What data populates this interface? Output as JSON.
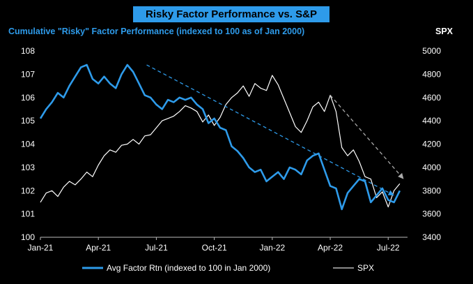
{
  "chart_data": {
    "type": "line",
    "title": "Risky Factor Performance vs. S&P",
    "subtitle": "Cumulative \"Risky\" Factor Performance (indexed to 100 as of Jan 2000)",
    "right_axis_title": "SPX",
    "x_tick_labels": [
      "Jan-21",
      "Apr-21",
      "Jul-21",
      "Oct-21",
      "Jan-22",
      "Apr-22",
      "Jul-22"
    ],
    "x_tick_months": [
      0,
      3,
      6,
      9,
      12,
      15,
      18
    ],
    "x_range_months": [
      0,
      19
    ],
    "left_axis": {
      "ylim": [
        100,
        108
      ],
      "ticks": [
        100,
        101,
        102,
        103,
        104,
        105,
        106,
        107,
        108
      ]
    },
    "right_axis": {
      "ylim": [
        3400,
        5000
      ],
      "ticks": [
        3400,
        3600,
        3800,
        4000,
        4200,
        4400,
        4600,
        4800,
        5000
      ]
    },
    "legend_position": "bottom",
    "series": [
      {
        "name": "Avg Factor Rtn (indexed to 100 in Jan 2000)",
        "axis": "left",
        "color": "#2e9bea",
        "x": [
          0,
          0.3,
          0.6,
          0.9,
          1.2,
          1.5,
          1.8,
          2.1,
          2.4,
          2.7,
          3.0,
          3.3,
          3.6,
          3.9,
          4.2,
          4.5,
          4.8,
          5.1,
          5.4,
          5.7,
          6.0,
          6.3,
          6.6,
          6.9,
          7.2,
          7.5,
          7.8,
          8.1,
          8.4,
          8.7,
          9.0,
          9.3,
          9.6,
          9.9,
          10.2,
          10.5,
          10.8,
          11.1,
          11.4,
          11.7,
          12.0,
          12.3,
          12.6,
          12.9,
          13.2,
          13.5,
          13.8,
          14.1,
          14.4,
          14.7,
          15.0,
          15.3,
          15.6,
          15.9,
          16.2,
          16.5,
          16.8,
          17.1,
          17.4,
          17.7,
          18.0,
          18.3,
          18.6
        ],
        "values": [
          105.1,
          105.5,
          105.8,
          106.2,
          106.0,
          106.5,
          106.9,
          107.3,
          107.4,
          106.8,
          106.6,
          106.9,
          106.6,
          106.4,
          107.0,
          107.4,
          107.1,
          106.6,
          106.1,
          106.0,
          105.7,
          105.5,
          105.9,
          105.8,
          106.0,
          105.9,
          106.0,
          105.7,
          105.5,
          104.9,
          105.1,
          104.7,
          104.6,
          103.9,
          103.7,
          103.4,
          103.0,
          102.8,
          102.9,
          102.4,
          102.6,
          102.8,
          102.5,
          103.0,
          102.9,
          102.7,
          103.3,
          103.5,
          103.6,
          102.9,
          102.2,
          102.1,
          101.2,
          101.9,
          102.2,
          102.5,
          102.4,
          101.5,
          101.8,
          102.1,
          101.6,
          101.5,
          102.0
        ],
        "trend": {
          "x": [
            5.5,
            18.3
          ],
          "values": [
            107.4,
            101.8
          ]
        }
      },
      {
        "name": "SPX",
        "axis": "right",
        "color": "#ffffff",
        "x": [
          0,
          0.3,
          0.6,
          0.9,
          1.2,
          1.5,
          1.8,
          2.1,
          2.4,
          2.7,
          3.0,
          3.3,
          3.6,
          3.9,
          4.2,
          4.5,
          4.8,
          5.1,
          5.4,
          5.7,
          6.0,
          6.3,
          6.6,
          6.9,
          7.2,
          7.5,
          7.8,
          8.1,
          8.4,
          8.7,
          9.0,
          9.3,
          9.6,
          9.9,
          10.2,
          10.5,
          10.8,
          11.1,
          11.4,
          11.7,
          12.0,
          12.3,
          12.6,
          12.9,
          13.2,
          13.5,
          13.8,
          14.1,
          14.4,
          14.7,
          15.0,
          15.3,
          15.6,
          15.9,
          16.2,
          16.5,
          16.8,
          17.1,
          17.4,
          17.7,
          18.0,
          18.3,
          18.6
        ],
        "values": [
          3700,
          3780,
          3800,
          3750,
          3830,
          3880,
          3850,
          3900,
          3960,
          3920,
          4020,
          4100,
          4150,
          4130,
          4190,
          4200,
          4240,
          4200,
          4270,
          4280,
          4340,
          4400,
          4420,
          4440,
          4480,
          4530,
          4510,
          4480,
          4390,
          4450,
          4360,
          4430,
          4540,
          4600,
          4640,
          4700,
          4610,
          4720,
          4680,
          4660,
          4790,
          4710,
          4590,
          4470,
          4350,
          4300,
          4400,
          4520,
          4560,
          4480,
          4620,
          4480,
          4170,
          4100,
          4150,
          4050,
          3920,
          3900,
          3740,
          3790,
          3660,
          3800,
          3860
        ],
        "trend": {
          "x": [
            15.0,
            18.8
          ],
          "values": [
            4620,
            3900
          ]
        }
      }
    ]
  }
}
